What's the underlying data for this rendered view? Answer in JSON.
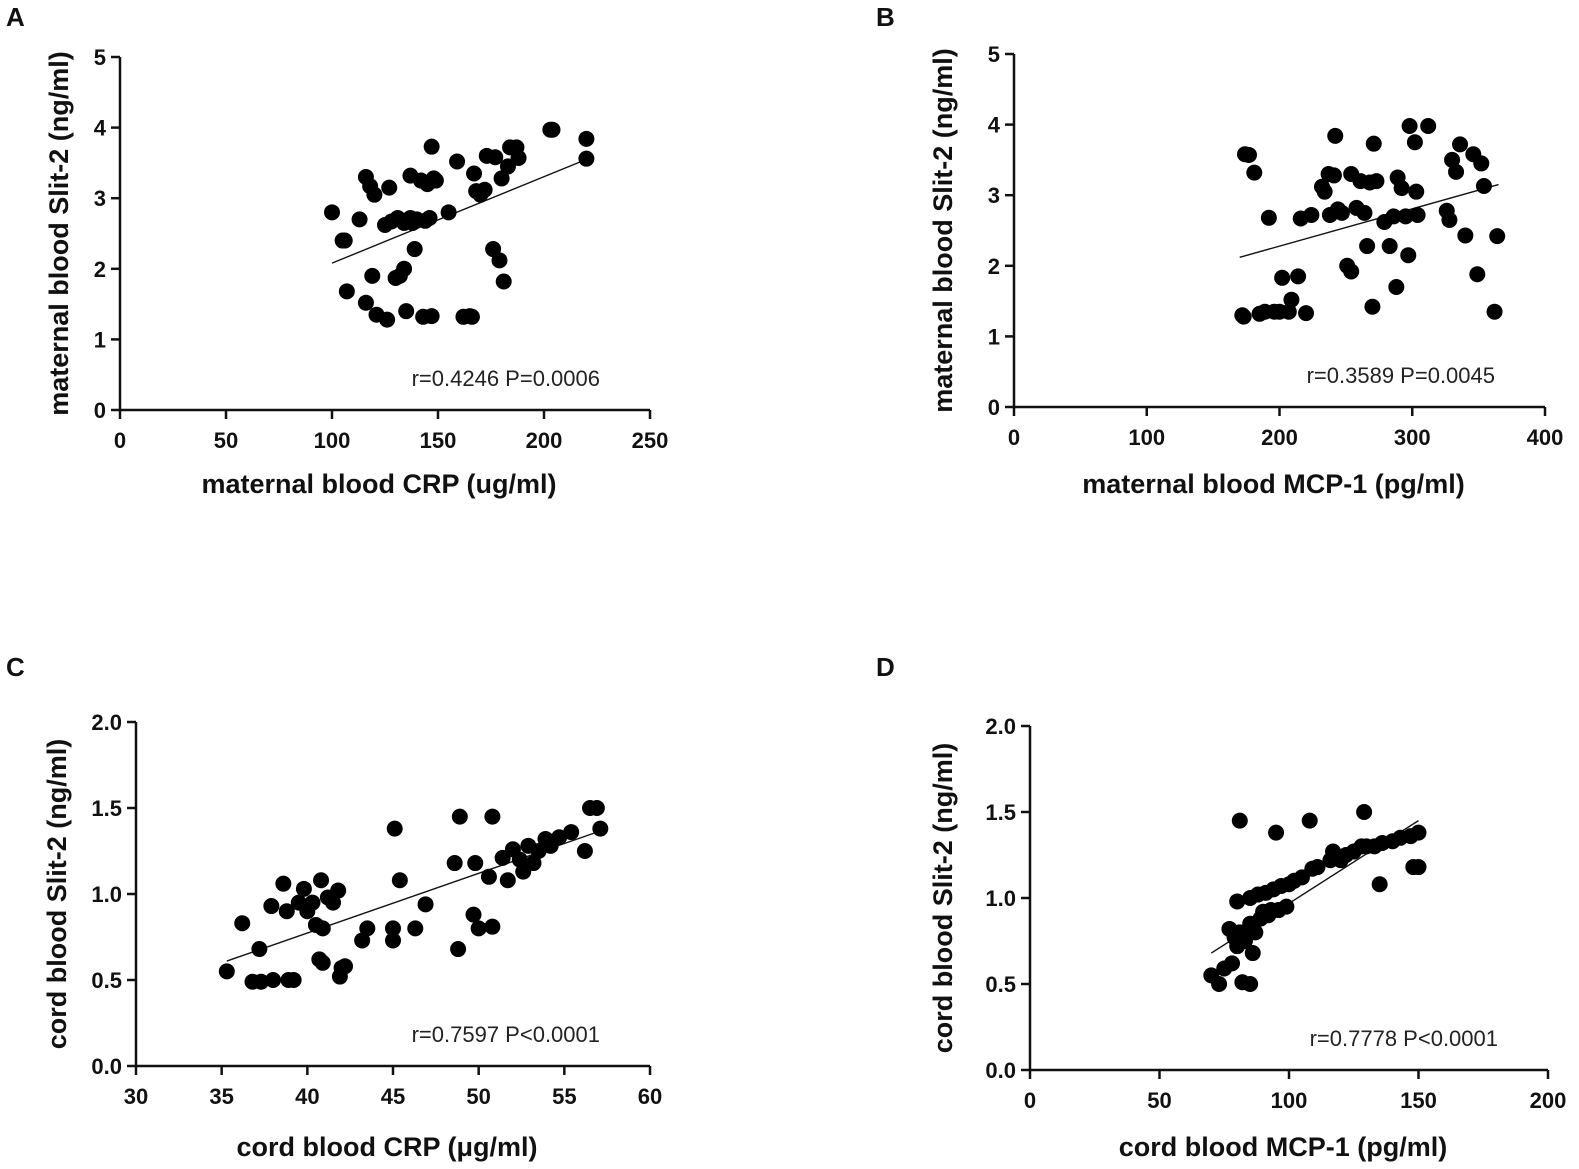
{
  "chart_data": [
    {
      "type": "scatter",
      "panel": "A",
      "xlabel": "maternal blood CRP  (ug/ml)",
      "ylabel": "maternal blood Slit-2 (ng/ml)",
      "xlim": [
        0,
        250
      ],
      "ylim": [
        0,
        5
      ],
      "xticks": [
        0,
        50,
        100,
        150,
        200,
        250
      ],
      "yticks": [
        0,
        1,
        2,
        3,
        4,
        5
      ],
      "ytick_decimals": 0,
      "stat": "r=0.4246 P=0.0006",
      "fit_line": [
        [
          100,
          2.08
        ],
        [
          220,
          3.55
        ]
      ],
      "points": [
        [
          100,
          2.8
        ],
        [
          105,
          2.4
        ],
        [
          106,
          2.4
        ],
        [
          107,
          1.68
        ],
        [
          113,
          2.7
        ],
        [
          116,
          1.52
        ],
        [
          116,
          3.3
        ],
        [
          118,
          3.17
        ],
        [
          119,
          1.9
        ],
        [
          120,
          3.05
        ],
        [
          121,
          1.35
        ],
        [
          125,
          2.62
        ],
        [
          126,
          1.28
        ],
        [
          127,
          3.15
        ],
        [
          128,
          2.67
        ],
        [
          130,
          1.87
        ],
        [
          131,
          2.72
        ],
        [
          132,
          1.9
        ],
        [
          134,
          2.0
        ],
        [
          134,
          2.65
        ],
        [
          135,
          1.4
        ],
        [
          137,
          2.72
        ],
        [
          137,
          3.32
        ],
        [
          138,
          2.65
        ],
        [
          139,
          2.28
        ],
        [
          140,
          2.7
        ],
        [
          142,
          3.25
        ],
        [
          143,
          1.32
        ],
        [
          144,
          2.68
        ],
        [
          145,
          3.2
        ],
        [
          146,
          2.72
        ],
        [
          147,
          1.33
        ],
        [
          147,
          3.73
        ],
        [
          148,
          3.28
        ],
        [
          149,
          3.25
        ],
        [
          155,
          2.8
        ],
        [
          159,
          3.52
        ],
        [
          162,
          1.32
        ],
        [
          165,
          1.33
        ],
        [
          166,
          1.32
        ],
        [
          167,
          3.35
        ],
        [
          168,
          3.1
        ],
        [
          170,
          3.05
        ],
        [
          172,
          3.12
        ],
        [
          173,
          3.6
        ],
        [
          176,
          2.28
        ],
        [
          177,
          3.58
        ],
        [
          179,
          2.12
        ],
        [
          180,
          3.28
        ],
        [
          181,
          1.82
        ],
        [
          183,
          3.45
        ],
        [
          184,
          3.72
        ],
        [
          187,
          3.72
        ],
        [
          188,
          3.57
        ],
        [
          203,
          3.97
        ],
        [
          204,
          3.97
        ],
        [
          220,
          3.84
        ],
        [
          220,
          3.56
        ]
      ]
    },
    {
      "type": "scatter",
      "panel": "B",
      "xlabel": "maternal blood MCP-1 (pg/ml)",
      "ylabel": "maternal blood Slit-2 (ng/ml)",
      "xlim": [
        0,
        400
      ],
      "ylim": [
        0,
        5
      ],
      "xticks": [
        0,
        100,
        200,
        300,
        400
      ],
      "yticks": [
        0,
        1,
        2,
        3,
        4,
        5
      ],
      "ytick_decimals": 0,
      "stat": "r=0.3589 P=0.0045",
      "fit_line": [
        [
          170,
          2.12
        ],
        [
          365,
          3.15
        ]
      ],
      "points": [
        [
          172,
          1.3
        ],
        [
          173,
          1.28
        ],
        [
          174,
          3.58
        ],
        [
          177,
          3.57
        ],
        [
          181,
          3.32
        ],
        [
          185,
          1.32
        ],
        [
          189,
          1.35
        ],
        [
          192,
          2.68
        ],
        [
          196,
          1.35
        ],
        [
          200,
          1.35
        ],
        [
          202,
          1.83
        ],
        [
          207,
          1.35
        ],
        [
          209,
          1.52
        ],
        [
          214,
          1.85
        ],
        [
          216,
          2.67
        ],
        [
          220,
          1.33
        ],
        [
          224,
          2.72
        ],
        [
          232,
          3.12
        ],
        [
          234,
          3.05
        ],
        [
          237,
          3.3
        ],
        [
          238,
          2.72
        ],
        [
          241,
          3.28
        ],
        [
          242,
          3.84
        ],
        [
          244,
          2.8
        ],
        [
          247,
          2.75
        ],
        [
          251,
          2.0
        ],
        [
          254,
          1.92
        ],
        [
          254,
          3.3
        ],
        [
          258,
          2.82
        ],
        [
          261,
          3.2
        ],
        [
          264,
          2.75
        ],
        [
          266,
          2.28
        ],
        [
          268,
          3.18
        ],
        [
          270,
          1.42
        ],
        [
          271,
          3.73
        ],
        [
          273,
          3.2
        ],
        [
          279,
          2.62
        ],
        [
          283,
          2.28
        ],
        [
          286,
          2.7
        ],
        [
          288,
          1.7
        ],
        [
          289,
          3.25
        ],
        [
          292,
          3.1
        ],
        [
          295,
          2.7
        ],
        [
          297,
          2.15
        ],
        [
          298,
          3.98
        ],
        [
          302,
          3.75
        ],
        [
          303,
          3.05
        ],
        [
          304,
          2.72
        ],
        [
          312,
          3.98
        ],
        [
          326,
          2.78
        ],
        [
          328,
          2.65
        ],
        [
          330,
          3.5
        ],
        [
          333,
          3.33
        ],
        [
          336,
          3.72
        ],
        [
          340,
          2.43
        ],
        [
          346,
          3.58
        ],
        [
          349,
          1.88
        ],
        [
          352,
          3.45
        ],
        [
          354,
          3.13
        ],
        [
          362,
          1.35
        ],
        [
          364,
          2.42
        ]
      ]
    },
    {
      "type": "scatter",
      "panel": "C",
      "xlabel": "cord blood CRP (μg/ml)",
      "ylabel": "cord blood Slit-2 (ng/ml)",
      "xlim": [
        30,
        60
      ],
      "ylim": [
        0,
        2
      ],
      "xticks": [
        30,
        35,
        40,
        45,
        50,
        55,
        60
      ],
      "yticks": [
        0,
        0.5,
        1.0,
        1.5,
        2.0
      ],
      "ytick_decimals": 1,
      "stat": "r=0.7597 P<0.0001",
      "fit_line": [
        [
          35.3,
          0.61
        ],
        [
          57.2,
          1.37
        ]
      ],
      "points": [
        [
          35.3,
          0.55
        ],
        [
          36.2,
          0.83
        ],
        [
          36.8,
          0.49
        ],
        [
          37.2,
          0.68
        ],
        [
          37.3,
          0.49
        ],
        [
          37.9,
          0.93
        ],
        [
          38.0,
          0.5
        ],
        [
          38.6,
          1.06
        ],
        [
          38.8,
          0.9
        ],
        [
          38.9,
          0.5
        ],
        [
          39.2,
          0.5
        ],
        [
          39.5,
          0.95
        ],
        [
          39.8,
          1.03
        ],
        [
          40.0,
          0.9
        ],
        [
          40.3,
          0.95
        ],
        [
          40.5,
          0.82
        ],
        [
          40.7,
          0.62
        ],
        [
          40.8,
          1.08
        ],
        [
          40.9,
          0.6
        ],
        [
          40.9,
          0.8
        ],
        [
          41.2,
          0.98
        ],
        [
          41.5,
          0.95
        ],
        [
          41.8,
          1.02
        ],
        [
          41.9,
          0.52
        ],
        [
          42.0,
          0.57
        ],
        [
          42.2,
          0.58
        ],
        [
          43.2,
          0.73
        ],
        [
          43.5,
          0.8
        ],
        [
          45.0,
          0.73
        ],
        [
          45.0,
          0.8
        ],
        [
          45.1,
          1.38
        ],
        [
          45.4,
          1.08
        ],
        [
          46.3,
          0.8
        ],
        [
          46.9,
          0.94
        ],
        [
          48.6,
          1.18
        ],
        [
          48.8,
          0.68
        ],
        [
          48.9,
          1.45
        ],
        [
          49.7,
          0.88
        ],
        [
          49.8,
          1.18
        ],
        [
          50.0,
          0.8
        ],
        [
          50.6,
          1.1
        ],
        [
          50.8,
          1.45
        ],
        [
          50.8,
          0.81
        ],
        [
          51.4,
          1.21
        ],
        [
          51.7,
          1.08
        ],
        [
          52.0,
          1.26
        ],
        [
          52.4,
          1.2
        ],
        [
          52.6,
          1.13
        ],
        [
          52.9,
          1.28
        ],
        [
          53.2,
          1.18
        ],
        [
          53.5,
          1.25
        ],
        [
          53.9,
          1.32
        ],
        [
          54.2,
          1.28
        ],
        [
          54.7,
          1.33
        ],
        [
          55.4,
          1.36
        ],
        [
          56.2,
          1.25
        ],
        [
          56.5,
          1.5
        ],
        [
          56.9,
          1.5
        ],
        [
          57.1,
          1.38
        ]
      ]
    },
    {
      "type": "scatter",
      "panel": "D",
      "xlabel": "cord blood MCP-1 (pg/ml)",
      "ylabel": "cord blood Slit-2 (ng/ml)",
      "xlim": [
        0,
        200
      ],
      "ylim": [
        0,
        2
      ],
      "xticks": [
        0,
        50,
        100,
        150,
        200
      ],
      "yticks": [
        0,
        0.5,
        1.0,
        1.5,
        2.0
      ],
      "ytick_decimals": 1,
      "stat": "r=0.7778 P<0.0001",
      "fit_line": [
        [
          70,
          0.68
        ],
        [
          150,
          1.45
        ]
      ],
      "points": [
        [
          70,
          0.55
        ],
        [
          73,
          0.5
        ],
        [
          75,
          0.59
        ],
        [
          77,
          0.82
        ],
        [
          78,
          0.62
        ],
        [
          79,
          0.77
        ],
        [
          80,
          0.98
        ],
        [
          80,
          0.72
        ],
        [
          81,
          0.8
        ],
        [
          81,
          1.45
        ],
        [
          82,
          0.51
        ],
        [
          83,
          0.75
        ],
        [
          85,
          0.85
        ],
        [
          85,
          1.0
        ],
        [
          85,
          0.5
        ],
        [
          86,
          0.68
        ],
        [
          87,
          0.8
        ],
        [
          88,
          1.02
        ],
        [
          89,
          0.88
        ],
        [
          90,
          0.92
        ],
        [
          91,
          1.03
        ],
        [
          92,
          0.9
        ],
        [
          93,
          0.93
        ],
        [
          94,
          1.05
        ],
        [
          95,
          1.38
        ],
        [
          96,
          0.93
        ],
        [
          97,
          1.07
        ],
        [
          99,
          0.95
        ],
        [
          100,
          1.08
        ],
        [
          102,
          1.1
        ],
        [
          105,
          1.12
        ],
        [
          108,
          1.45
        ],
        [
          109,
          1.17
        ],
        [
          111,
          1.18
        ],
        [
          116,
          1.22
        ],
        [
          117,
          1.27
        ],
        [
          120,
          1.22
        ],
        [
          122,
          1.25
        ],
        [
          125,
          1.27
        ],
        [
          128,
          1.3
        ],
        [
          129,
          1.5
        ],
        [
          130,
          1.3
        ],
        [
          133,
          1.3
        ],
        [
          135,
          1.08
        ],
        [
          136,
          1.32
        ],
        [
          140,
          1.33
        ],
        [
          143,
          1.35
        ],
        [
          147,
          1.36
        ],
        [
          148,
          1.18
        ],
        [
          150,
          1.38
        ],
        [
          150,
          1.18
        ]
      ]
    }
  ]
}
